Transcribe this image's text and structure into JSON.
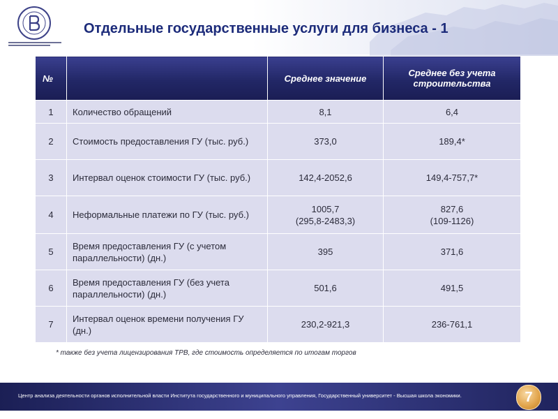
{
  "header": {
    "title": "Отдельные государственные услуги для бизнеса - 1"
  },
  "table": {
    "headers": [
      "№",
      "",
      "Среднее значение",
      "Среднее без учета строительства"
    ],
    "rows": [
      {
        "num": "1",
        "name": "Количество обращений",
        "avg": "8,1",
        "avg_nc": "6,4"
      },
      {
        "num": "2",
        "name": "Стоимость предоставления ГУ (тыс. руб.)",
        "avg": "373,0",
        "avg_nc": "189,4*"
      },
      {
        "num": "3",
        "name": "Интервал оценок стоимости ГУ (тыс. руб.)",
        "avg": "142,4-2052,6",
        "avg_nc": "149,4-757,7*"
      },
      {
        "num": "4",
        "name": "Неформальные платежи по ГУ (тыс. руб.)",
        "avg": "1005,7\n(295,8-2483,3)",
        "avg_nc": "827,6\n(109-1126)"
      },
      {
        "num": "5",
        "name": "Время предоставления ГУ (с учетом параллельности) (дн.)",
        "avg": "395",
        "avg_nc": "371,6"
      },
      {
        "num": "6",
        "name": "Время предоставления ГУ (без учета параллельности) (дн.)",
        "avg": "501,6",
        "avg_nc": "491,5"
      },
      {
        "num": "7",
        "name": "Интервал оценок времени получения ГУ (дн.)",
        "avg": "230,2-921,3",
        "avg_nc": "236-761,1"
      }
    ]
  },
  "footnote": "* также без учета лицензирования ТРВ, где стоимость определяется по итогам торгов",
  "footer": {
    "text": "Центр анализа деятельности органов исполнительной власти Института государственного  и муниципального управления, Государственный университет  - Высшая школа экономики.",
    "page_number": "7"
  },
  "colors": {
    "title": "#1c2b7a",
    "table_header": "#222766",
    "table_cell": "#dcdcee",
    "footer_bar": "#2b2f70",
    "page_badge": "#e3a750"
  },
  "icons": {
    "logo": "university-emblem-icon",
    "map": "russia-map-decoration"
  }
}
